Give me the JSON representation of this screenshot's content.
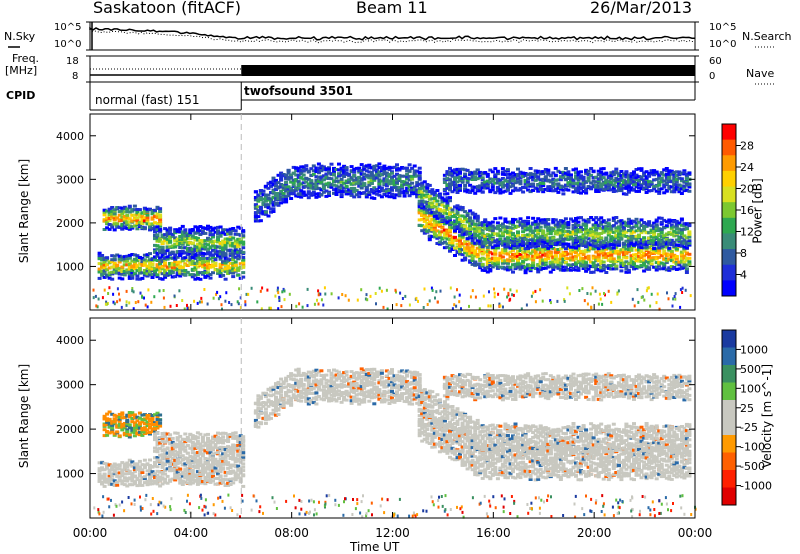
{
  "header": {
    "title": "Saskatoon (fitACF)",
    "beam": "Beam 11",
    "date": "26/Mar/2013"
  },
  "top_panels": {
    "nsky_label": "N.Sky",
    "nsearch_label": "N.Search",
    "freq_label": "Freq.",
    "freq_unit": "[MHz]",
    "nave_label": "Nave",
    "cpid_label": "CPID",
    "cpid_segments": [
      {
        "name": "normal (fast) 151",
        "start_h": 0,
        "end_h": 6
      },
      {
        "name": "twofsound 3501",
        "start_h": 6,
        "end_h": 24
      }
    ],
    "noise_ticks_left": [
      "10^5",
      "10^0"
    ],
    "noise_ticks_right": [
      "10^5",
      "10^0"
    ],
    "freq_ticks": [
      "18",
      "8"
    ],
    "nave_ticks": [
      "60",
      "0"
    ]
  },
  "chart_data": [
    {
      "type": "heatmap",
      "name": "power",
      "ylabel": "Slant Range [km]",
      "ylim": [
        0,
        4500
      ],
      "yticks": [
        1000,
        2000,
        3000,
        4000
      ],
      "xlim_hours": [
        0,
        24
      ],
      "colorbar": {
        "label": "Power [dB]",
        "ticks": [
          "28",
          "24",
          "20",
          "16",
          "12",
          "8",
          "4"
        ],
        "colors": [
          "#ff0000",
          "#ff5a00",
          "#ff9b00",
          "#ffd000",
          "#d8e020",
          "#7cc830",
          "#2ea850",
          "#3a8c78",
          "#2f5aa0",
          "#1f2fd8",
          "#0000ff"
        ]
      },
      "echo_bands": [
        {
          "start_h": 0.3,
          "end_h": 6.0,
          "center_km": 1050,
          "width_km": 250,
          "level": 0.8
        },
        {
          "start_h": 0.5,
          "end_h": 2.8,
          "center_km": 2150,
          "width_km": 250,
          "level": 0.9
        },
        {
          "start_h": 2.5,
          "end_h": 6.0,
          "center_km": 1600,
          "width_km": 300,
          "level": 0.6
        },
        {
          "start_h": 6.5,
          "end_h": 13.0,
          "center_km": 3000,
          "width_km": 350,
          "level": 0.35
        },
        {
          "start_h": 13.0,
          "end_h": 23.8,
          "center_km": 1300,
          "width_km": 350,
          "level": 0.9
        },
        {
          "start_h": 13.0,
          "end_h": 23.8,
          "center_km": 1800,
          "width_km": 300,
          "level": 0.55
        },
        {
          "start_h": 14.0,
          "end_h": 23.8,
          "center_km": 3000,
          "width_km": 250,
          "level": 0.3
        }
      ]
    },
    {
      "type": "heatmap",
      "name": "velocity",
      "ylabel": "Slant Range [km]",
      "xlabel": "Time UT",
      "ylim": [
        0,
        4500
      ],
      "yticks": [
        1000,
        2000,
        3000,
        4000
      ],
      "xlim_hours": [
        0,
        24
      ],
      "xticks": [
        "00:00",
        "04:00",
        "08:00",
        "12:00",
        "16:00",
        "20:00",
        "00:00"
      ],
      "colorbar": {
        "label": "Velocity [m s^-1]",
        "ticks": [
          "1000",
          "500",
          "100",
          "25",
          "-25",
          "-100",
          "-500",
          "-1000"
        ],
        "colors": [
          "#1a3aa0",
          "#2a6aa8",
          "#3a9060",
          "#60c040",
          "#c8c8c0",
          "#c8c8c0",
          "#ff9a00",
          "#ff6000",
          "#ff2000",
          "#e00000"
        ]
      }
    }
  ]
}
